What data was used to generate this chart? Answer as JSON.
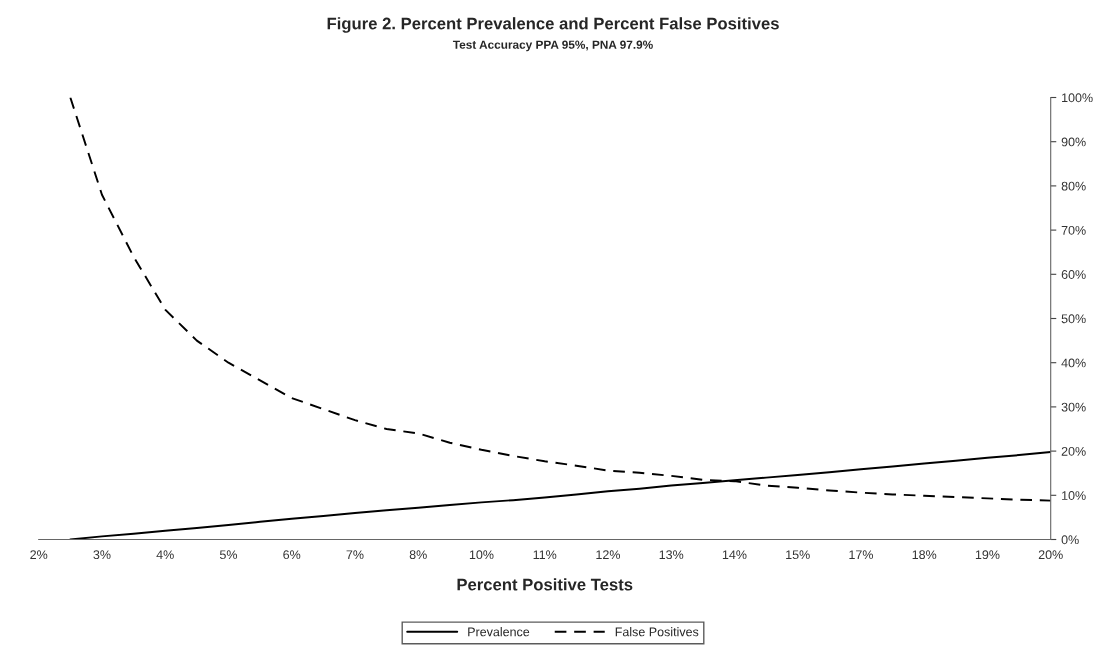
{
  "chart_data": {
    "type": "line",
    "title": "Figure 2. Percent Prevalence and Percent False Positives",
    "subtitle": "Test Accuracy PPA 95%, PNA 97.9%",
    "xlabel": "Percent Positive Tests",
    "categories": [
      "2%",
      null,
      "3%",
      null,
      "4%",
      null,
      "5%",
      null,
      "6%",
      null,
      "7%",
      null,
      "8%",
      null,
      "10%",
      null,
      "11%",
      null,
      "12%",
      null,
      "13%",
      null,
      "14%",
      null,
      "15%",
      null,
      "17%",
      null,
      "18%",
      null,
      "19%",
      null,
      "20%"
    ],
    "series": [
      {
        "name": "Prevalence",
        "color": "#000000",
        "line_style": "solid",
        "values": [
          null,
          0,
          0.7,
          1.3,
          2.0,
          2.6,
          3.3,
          4.0,
          4.7,
          5.3,
          6.0,
          6.6,
          7.2,
          7.8,
          8.4,
          8.9,
          9.5,
          10.2,
          10.9,
          11.5,
          12.2,
          12.8,
          13.4,
          14.0,
          14.6,
          15.2,
          15.9,
          16.5,
          17.2,
          17.8,
          18.5,
          19.1,
          19.8
        ]
      },
      {
        "name": "False Positives",
        "color": "#000000",
        "line_style": "dashed",
        "values": [
          null,
          100,
          78,
          64,
          52,
          45,
          40,
          36,
          32,
          29.5,
          27,
          25,
          24,
          21.9,
          20.3,
          18.9,
          17.7,
          16.7,
          15.6,
          15.1,
          14.4,
          13.5,
          13.2,
          12.2,
          11.7,
          11.1,
          10.6,
          10.2,
          9.9,
          9.6,
          9.3,
          9.0,
          8.8
        ]
      }
    ],
    "ylim": [
      0,
      100
    ],
    "yticks": [
      {
        "value": 0,
        "label": "0%"
      },
      {
        "value": 10,
        "label": "10%"
      },
      {
        "value": 20,
        "label": "20%"
      },
      {
        "value": 30,
        "label": "30%"
      },
      {
        "value": 40,
        "label": "40%"
      },
      {
        "value": 50,
        "label": "50%"
      },
      {
        "value": 60,
        "label": "60%"
      },
      {
        "value": 70,
        "label": "70%"
      },
      {
        "value": 80,
        "label": "80%"
      },
      {
        "value": 90,
        "label": "90%"
      },
      {
        "value": 100,
        "label": "100%"
      }
    ],
    "grid": false,
    "legend": "bottom",
    "marker": "none"
  }
}
